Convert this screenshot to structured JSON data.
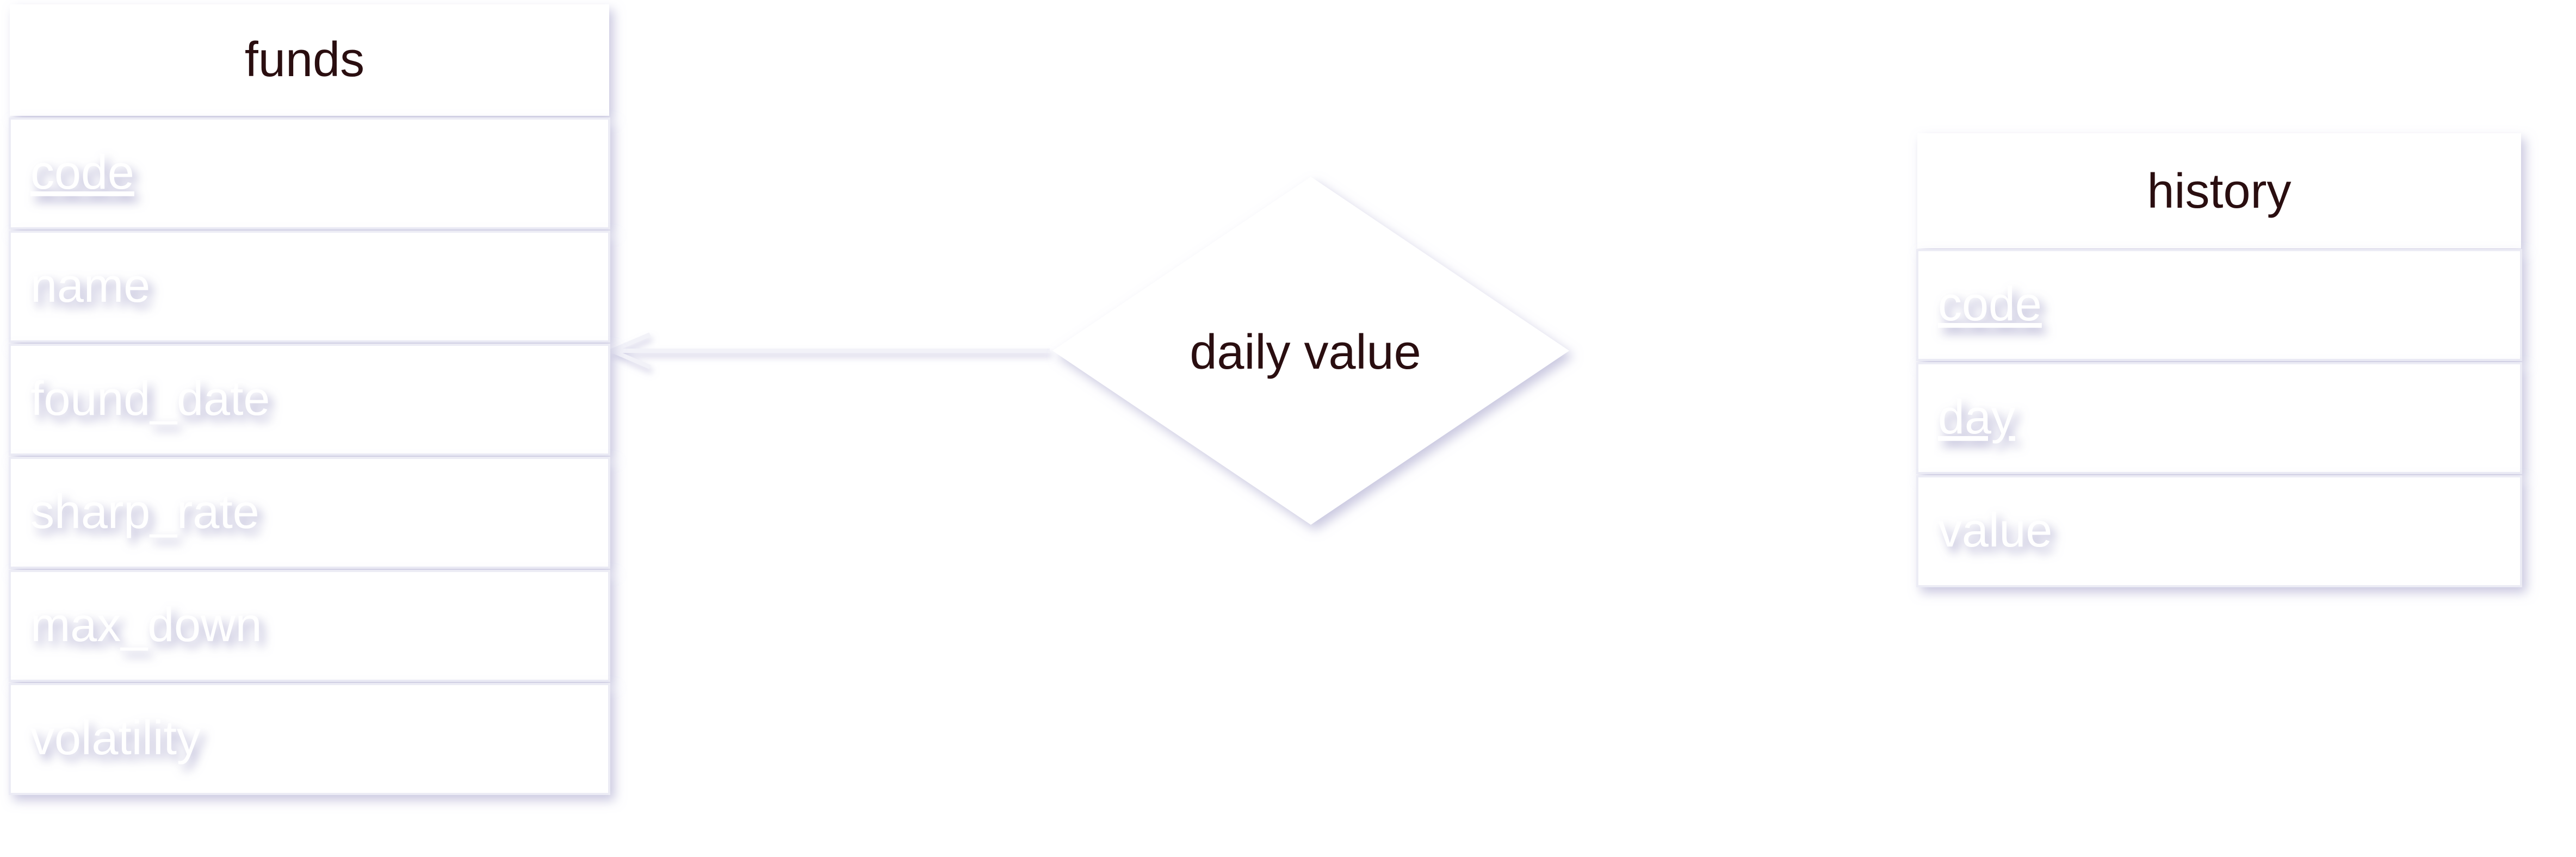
{
  "entities": {
    "funds": {
      "title": "funds",
      "attributes": [
        {
          "label": "code",
          "key": true
        },
        {
          "label": "name",
          "key": false
        },
        {
          "label": "found_date",
          "key": false
        },
        {
          "label": "sharp_rate",
          "key": false
        },
        {
          "label": "max_down",
          "key": false
        },
        {
          "label": "volatility",
          "key": false
        }
      ]
    },
    "history": {
      "title": "history",
      "attributes": [
        {
          "label": "code",
          "key": true
        },
        {
          "label": "day",
          "key": true
        },
        {
          "label": "value",
          "key": false
        }
      ]
    }
  },
  "relationship": {
    "label": "daily value"
  },
  "colors": {
    "title_text": "#2a0e10",
    "shadow": "#c9c8e0",
    "box_border": "#e6e6f2",
    "attr_text": "#ffffff"
  }
}
